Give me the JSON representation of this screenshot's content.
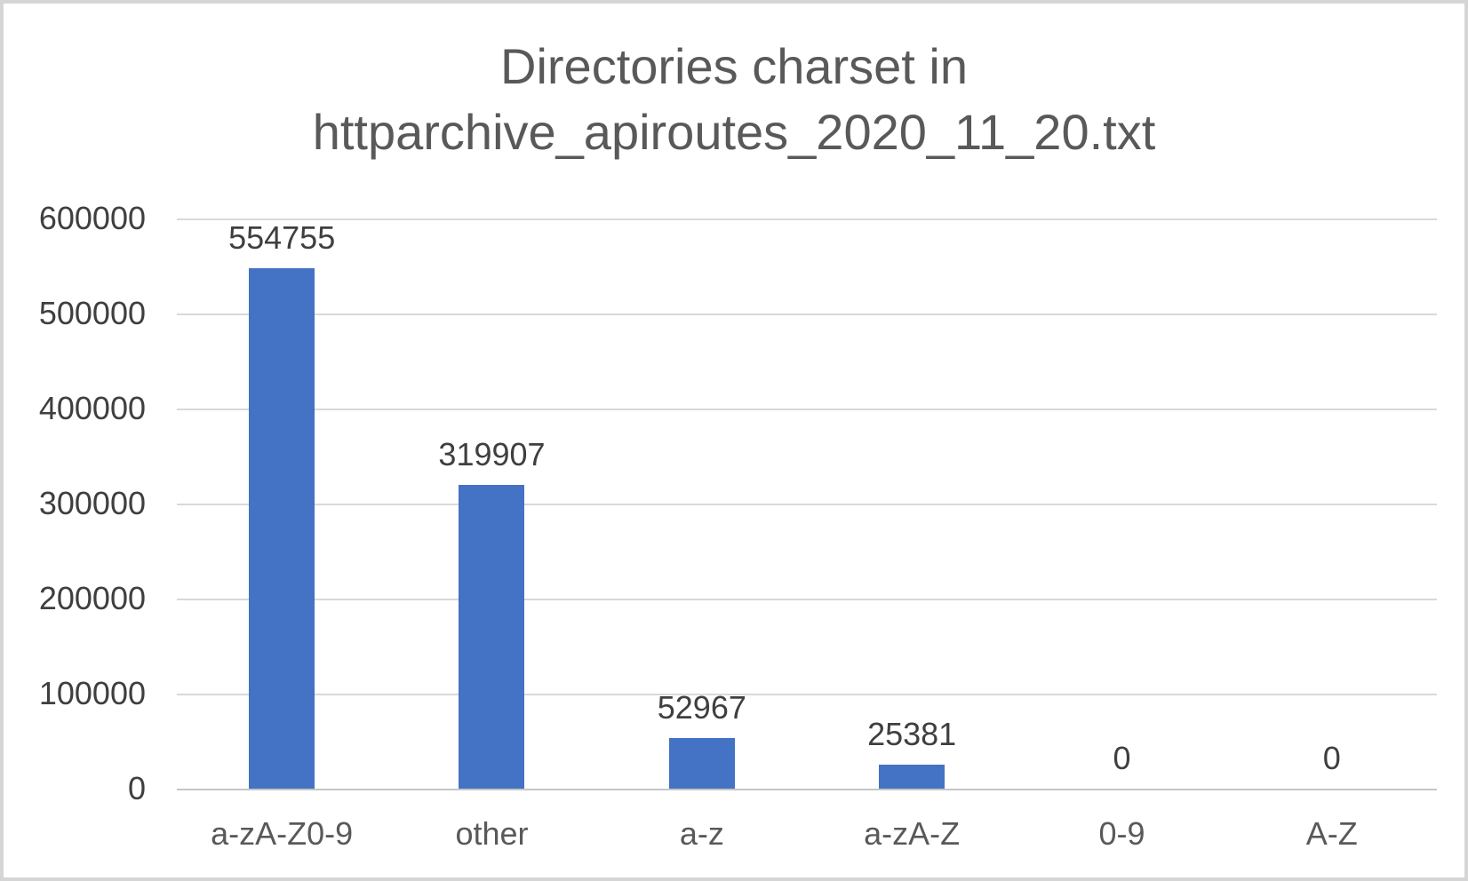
{
  "chart_data": {
    "type": "bar",
    "title": "Directories charset in httparchive_apiroutes_2020_11_20.txt",
    "title_lines": [
      "Directories charset in",
      "httparchive_apiroutes_2020_11_20.txt"
    ],
    "categories": [
      "a-zA-Z0-9",
      "other",
      "a-z",
      "a-zA-Z",
      "0-9",
      "A-Z"
    ],
    "values": [
      554755,
      319907,
      52967,
      25381,
      0,
      0
    ],
    "data_labels": [
      "554755",
      "319907",
      "52967",
      "25381",
      "0",
      "0"
    ],
    "xlabel": "",
    "ylabel": "",
    "ylim": [
      0,
      600000
    ],
    "ytick_interval": 100000,
    "yticks_top_to_bottom": [
      "600000",
      "500000",
      "400000",
      "300000",
      "200000",
      "100000",
      "0"
    ],
    "grid": true,
    "legend": false,
    "bar_color": "#4472C4"
  },
  "colors": {
    "bar": "#4472C4",
    "title_text": "#595959",
    "axis_text": "#3F3F3F",
    "category_text": "#595959",
    "gridline": "#D9D9D9",
    "axis_line": "#C6C6C6",
    "border": "#D5D5D5",
    "background": "#FFFFFF"
  }
}
